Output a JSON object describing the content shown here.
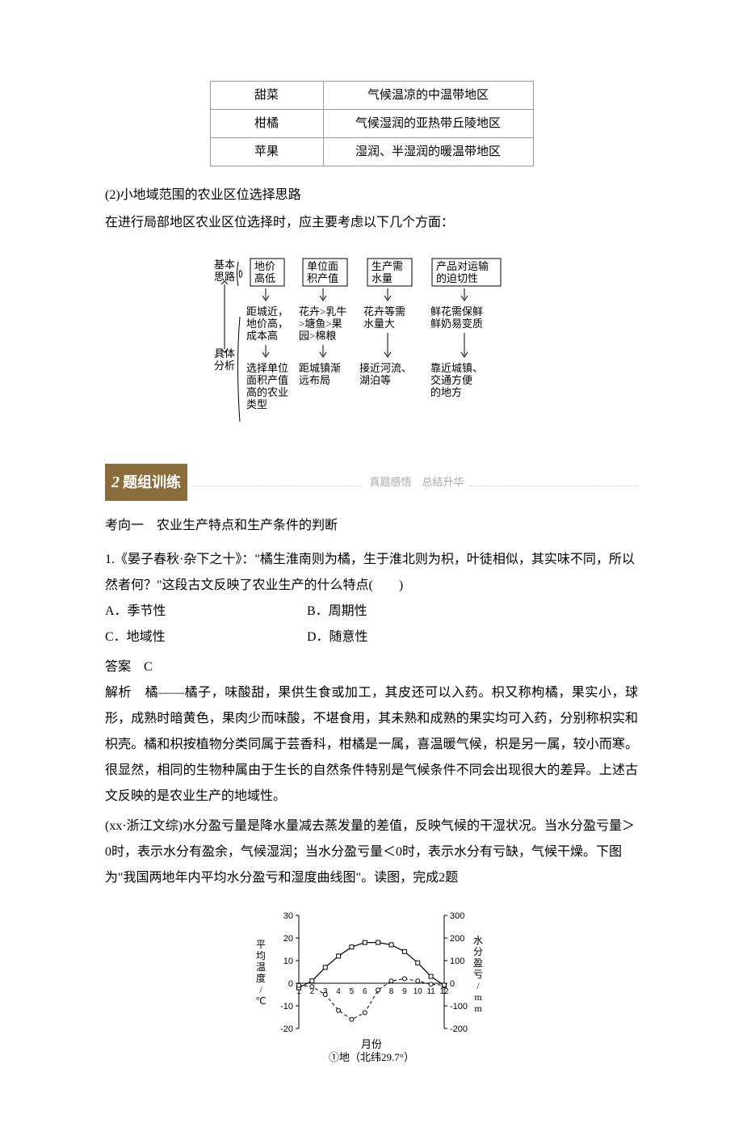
{
  "topTable": {
    "rows": [
      {
        "crop": "甜菜",
        "region": "气候温凉的中温带地区"
      },
      {
        "crop": "柑橘",
        "region": "气候湿润的亚热带丘陵地区"
      },
      {
        "crop": "苹果",
        "region": "湿润、半湿润的暖温带地区"
      }
    ]
  },
  "subsection": {
    "number": "(2)",
    "title": "小地域范围的农业区位选择思路"
  },
  "intro": "在进行局部地区农业区位选择时，应主要考虑以下几个方面：",
  "diagram": {
    "leftLabels": {
      "top": "基本",
      "topSub": "思路",
      "bottom": "具体",
      "bottomSub": "分析"
    },
    "columns": [
      {
        "header": "地价\n高低",
        "middle": "距城近，\n地价高，\n成本高",
        "bottom": "选择单位\n面积产值\n高的农业\n类型"
      },
      {
        "header": "单位面\n积产值",
        "middle": "花卉>乳牛\n>塘鱼>果\n园>棉粮",
        "bottom": "距城镇渐\n远布局"
      },
      {
        "header": "生产需\n水量",
        "middle": "花卉等需\n水量大",
        "bottom": "接近河流、\n湖泊等"
      },
      {
        "header": "产品对运输\n的迫切性",
        "middle": "鲜花需保鲜\n鲜奶易变质",
        "bottom": "靠近城镇、\n交通方便\n的地方"
      }
    ]
  },
  "sectionHeader": {
    "number": "2",
    "title": "题组训练",
    "subtitle": "真题感悟　总结升华"
  },
  "examDirection": "考向一　农业生产特点和生产条件的判断",
  "question1": {
    "source": "1.《晏子春秋·杂下之十》：",
    "quote": "\"橘生淮南则为橘，生于淮北则为枳，叶徒相似，其实味不同，所以然者何？\"这段古文反映了农业生产的什么特点(　　)",
    "options": {
      "A": "A．季节性",
      "B": "B．周期性",
      "C": "C．地域性",
      "D": "D．随意性"
    },
    "answerLabel": "答案　C",
    "analysisLabel": "解析　",
    "analysis": "橘——橘子，味酸甜，果供生食或加工，其皮还可以入药。枳又称枸橘，果实小，球形，成熟时暗黄色，果肉少而味酸，不堪食用，其未熟和成熟的果实均可入药，分别称枳实和枳壳。橘和枳按植物分类同属于芸香科，柑橘是一属，喜温暖气候，枳是另一属，较小而寒。很显然，相同的生物种属由于生长的自然条件特别是气候条件不同会出现很大的差异。上述古文反映的是农业生产的地域性。"
  },
  "question2": {
    "source": "(xx·浙江文综)",
    "text": "水分盈亏量是降水量减去蒸发量的差值，反映气候的干湿状况。当水分盈亏量＞0时，表示水分有盈余，气候湿润；当水分盈亏量＜0时，表示水分有亏缺，气候干燥。下图为\"我国两地年内平均水分盈亏和湿度曲线图\"。读图，完成2题"
  },
  "chart": {
    "title": "",
    "caption": "①地（北纬29.7°）",
    "xlabel": "月份",
    "ylabel_left": "平均温度/℃",
    "ylabel_right": "水分盈亏/mm",
    "xticks": [
      1,
      2,
      3,
      4,
      5,
      6,
      7,
      8,
      9,
      10,
      11,
      12
    ],
    "y_left_ticks": [
      -20,
      -10,
      0,
      10,
      20,
      30
    ],
    "y_right_ticks": [
      -200,
      -100,
      0,
      100,
      200,
      300
    ],
    "temperature_data": [
      -2,
      1,
      7,
      12,
      16,
      18,
      18,
      17,
      14,
      9,
      3,
      -1
    ],
    "moisture_data": [
      -10,
      -15,
      -50,
      -120,
      -160,
      -130,
      -30,
      10,
      20,
      10,
      -5,
      -8
    ],
    "temp_marker": "square-open",
    "moisture_marker": "circle-open",
    "temp_line_color": "#000000",
    "moisture_line_color": "#000000",
    "moisture_dash": "dashed",
    "background": "#ffffff"
  }
}
